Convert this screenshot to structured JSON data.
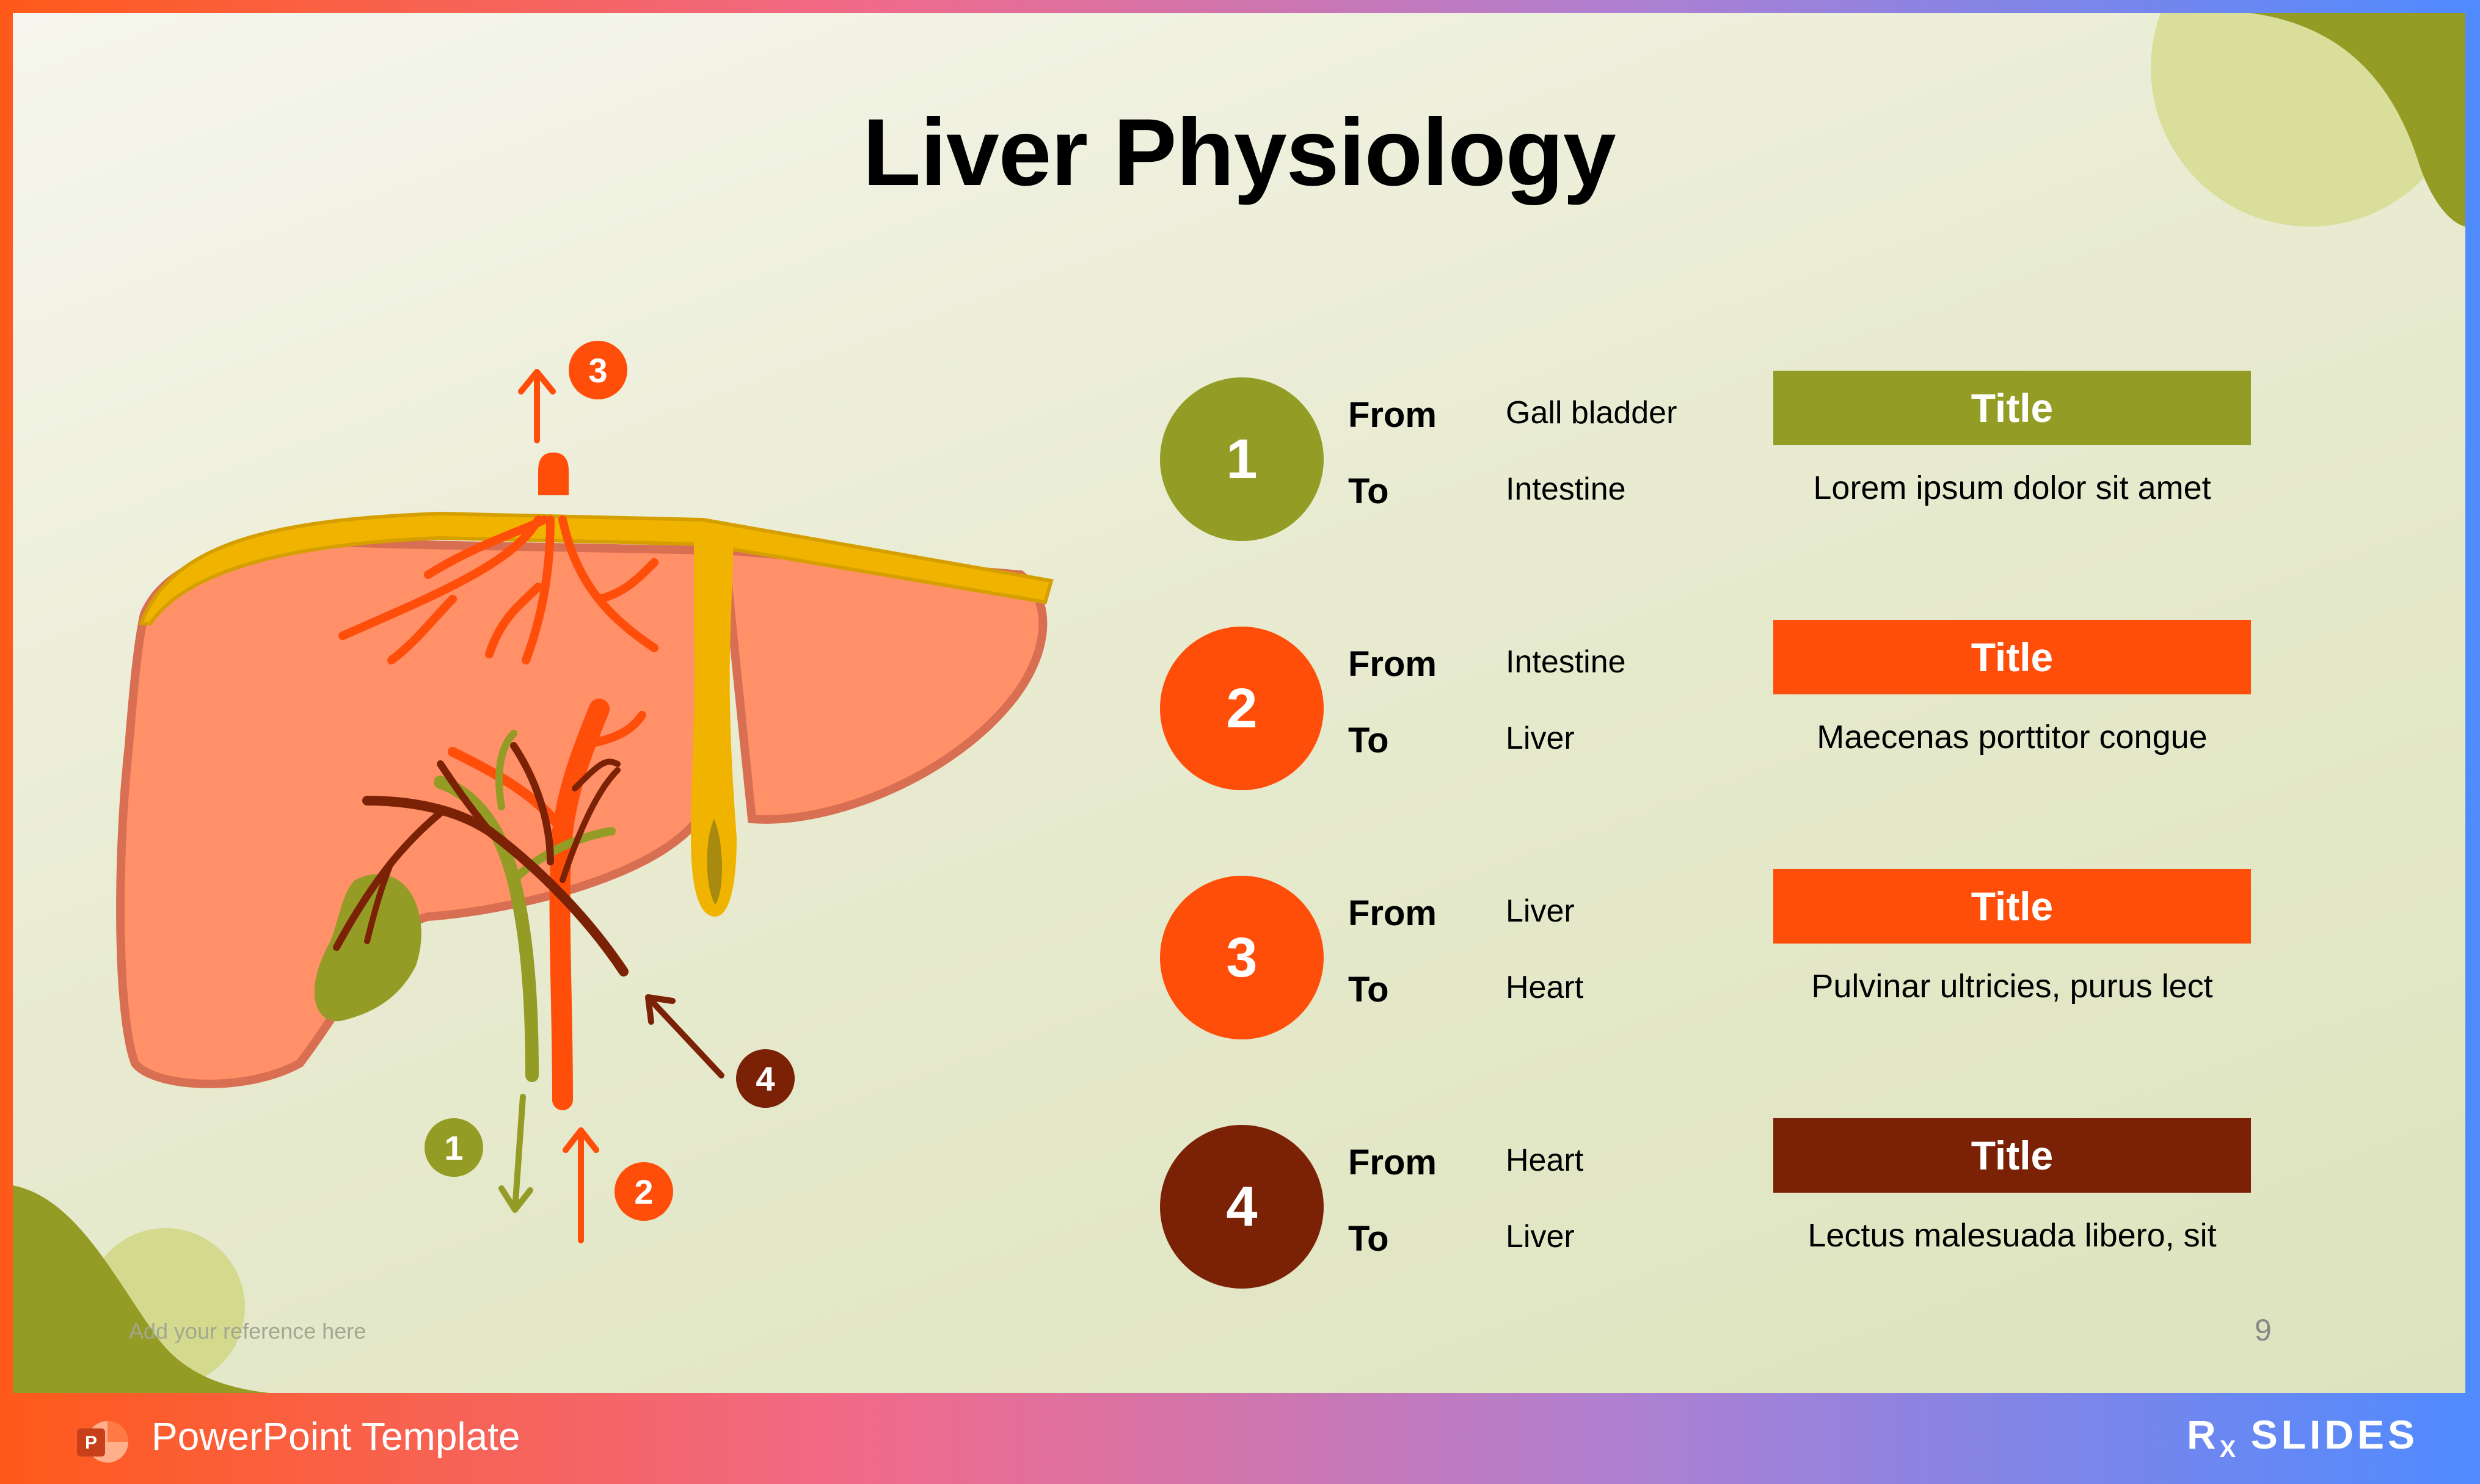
{
  "title": "Liver Physiology",
  "diagram_markers": [
    "1",
    "2",
    "3",
    "4"
  ],
  "rows": [
    {
      "num": "1",
      "from_label": "From",
      "to_label": "To",
      "from": "Gall bladder",
      "to": "Intestine",
      "title": "Title",
      "desc": "Lorem ipsum dolor sit amet",
      "color": "#939c25",
      "bar_color": "#939c25"
    },
    {
      "num": "2",
      "from_label": "From",
      "to_label": "To",
      "from": "Intestine",
      "to": "Liver",
      "title": "Title",
      "desc": "Maecenas porttitor congue",
      "color": "#ff4d0a",
      "bar_color": "#ff4d0a"
    },
    {
      "num": "3",
      "from_label": "From",
      "to_label": "To",
      "from": "Liver",
      "to": "Heart",
      "title": "Title",
      "desc": "Pulvinar ultricies, purus lect",
      "color": "#ff4d0a",
      "bar_color": "#ff4d0a"
    },
    {
      "num": "4",
      "from_label": "From",
      "to_label": "To",
      "from": "Heart",
      "to": "Liver",
      "title": "Title",
      "desc": "Lectus malesuada libero, sit",
      "color": "#7b2206",
      "bar_color": "#7b2206"
    }
  ],
  "reference": "Add your reference here",
  "page_number": "9",
  "footer": {
    "text": "PowerPoint Template",
    "brand": "RX SLIDES"
  }
}
